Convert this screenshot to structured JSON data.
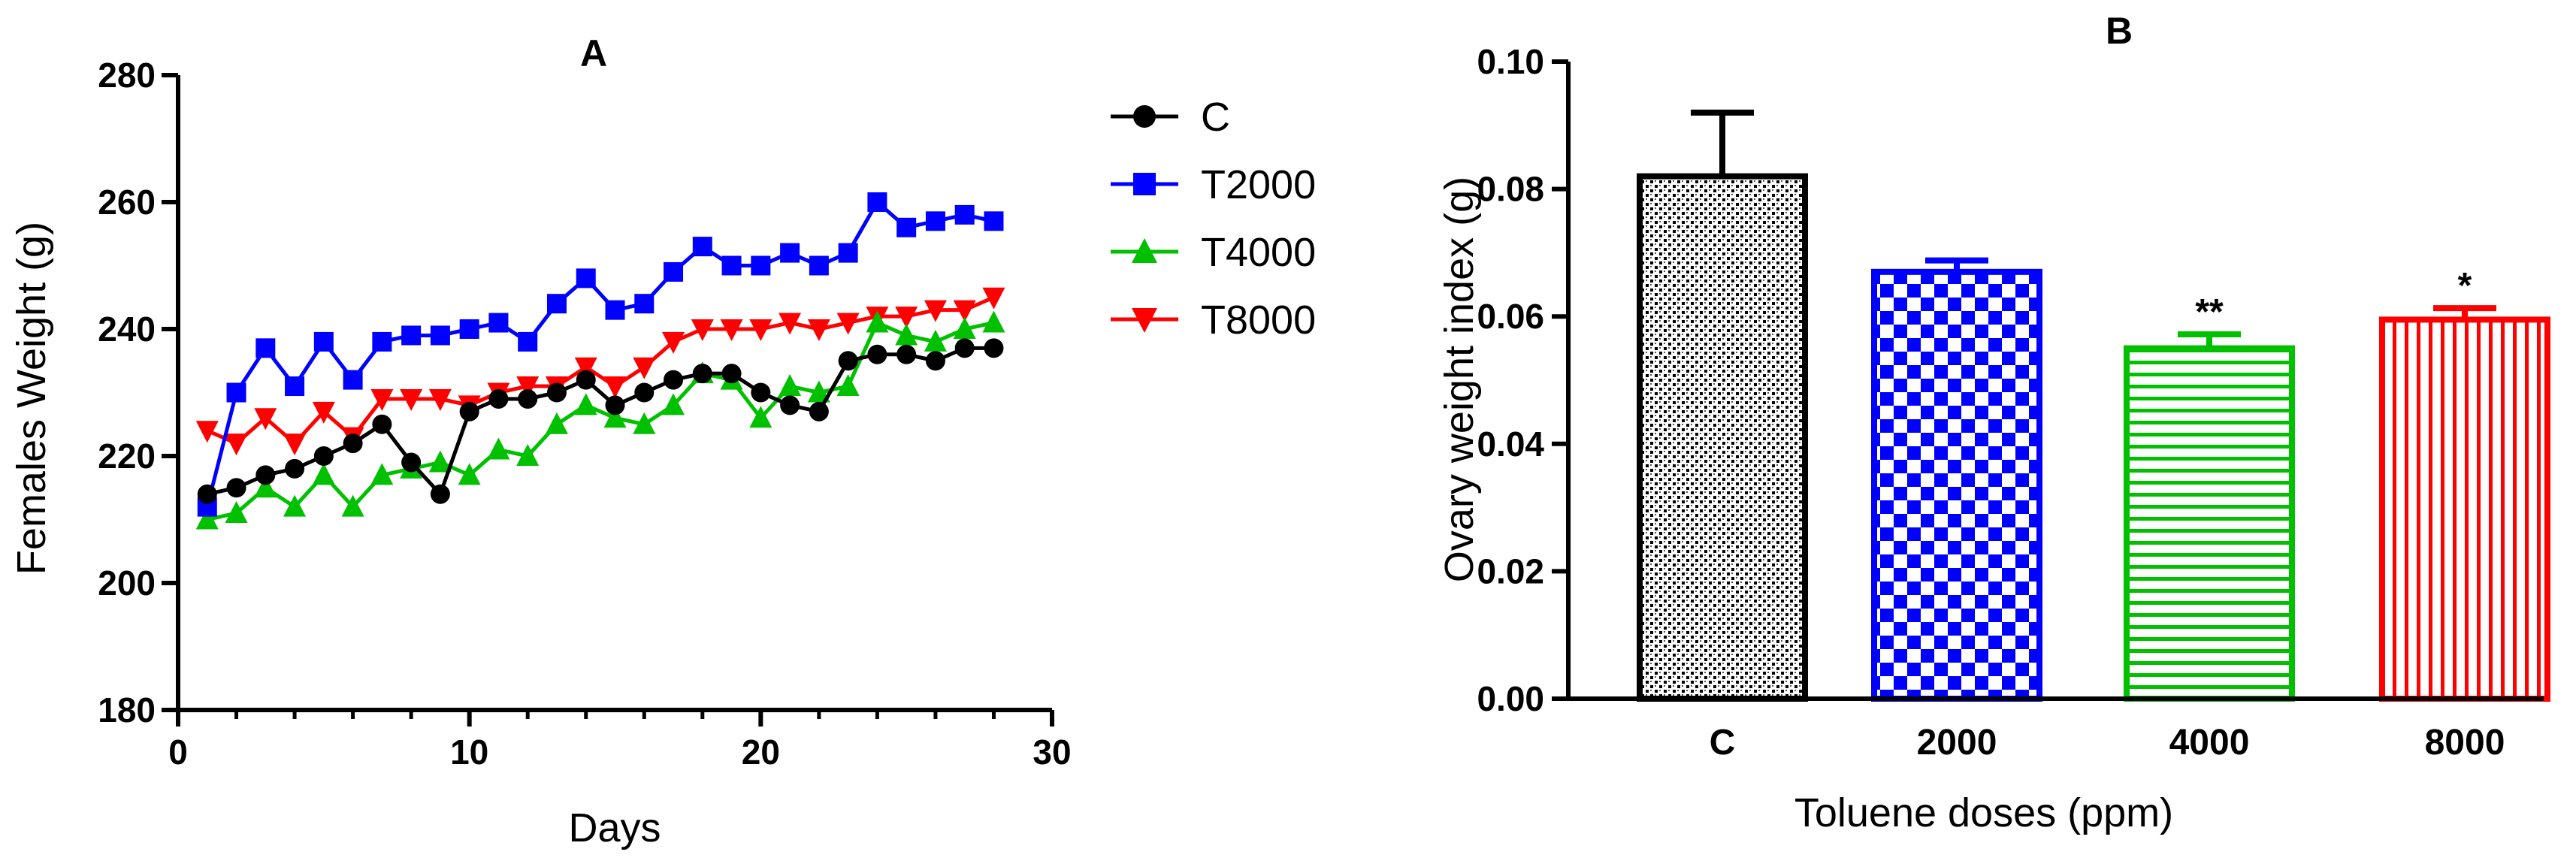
{
  "chart_data": [
    {
      "panel": "A",
      "type": "line",
      "title": "A",
      "xlabel": "Days",
      "ylabel": "Females Weight (g)",
      "xlim": [
        0,
        30
      ],
      "ylim": [
        180,
        280
      ],
      "xticks": [
        0,
        10,
        20,
        30
      ],
      "yticks": [
        180,
        200,
        220,
        240,
        260,
        280
      ],
      "grid": false,
      "legend": "right",
      "x": [
        1,
        2,
        3,
        4,
        5,
        6,
        7,
        8,
        9,
        10,
        11,
        12,
        13,
        14,
        15,
        16,
        17,
        18,
        19,
        20,
        21,
        22,
        23,
        24,
        25,
        26,
        27,
        28
      ],
      "series": [
        {
          "name": "C",
          "color": "#000000",
          "marker": "circle",
          "values": [
            214,
            215,
            217,
            218,
            220,
            222,
            225,
            219,
            214,
            227,
            229,
            229,
            230,
            232,
            228,
            230,
            232,
            233,
            233,
            230,
            228,
            227,
            235,
            236,
            236,
            235,
            237,
            237
          ]
        },
        {
          "name": "T2000",
          "color": "#0000ff",
          "marker": "square",
          "values": [
            212,
            230,
            237,
            231,
            238,
            232,
            238,
            239,
            239,
            240,
            241,
            238,
            244,
            248,
            243,
            244,
            249,
            253,
            250,
            250,
            252,
            250,
            252,
            260,
            256,
            257,
            258,
            257
          ]
        },
        {
          "name": "T4000",
          "color": "#00c000",
          "marker": "triangle-up",
          "values": [
            210,
            211,
            215,
            212,
            217,
            212,
            217,
            218,
            219,
            217,
            221,
            220,
            225,
            228,
            226,
            225,
            228,
            233,
            232,
            226,
            231,
            230,
            231,
            241,
            239,
            238,
            240,
            241
          ]
        },
        {
          "name": "T8000",
          "color": "#ff0000",
          "marker": "triangle-down",
          "values": [
            224,
            222,
            226,
            222,
            227,
            223,
            229,
            229,
            229,
            228,
            230,
            231,
            231,
            234,
            231,
            234,
            238,
            240,
            240,
            240,
            241,
            240,
            241,
            242,
            242,
            243,
            243,
            245
          ]
        }
      ]
    },
    {
      "panel": "B",
      "type": "bar",
      "title": "B",
      "xlabel": "Toluene doses (ppm)",
      "ylabel": "Ovary weight index (g)",
      "ylim": [
        0,
        0.1
      ],
      "yticks": [
        "0.00",
        "0.02",
        "0.04",
        "0.06",
        "0.08",
        "0.10"
      ],
      "ytick_values": [
        0,
        0.02,
        0.04,
        0.06,
        0.08,
        0.1
      ],
      "grid": false,
      "categories": [
        "C",
        "2000",
        "4000",
        "8000"
      ],
      "values": [
        0.082,
        0.067,
        0.055,
        0.0595
      ],
      "error": [
        0.01,
        0.0018,
        0.0022,
        0.0018
      ],
      "significance": [
        "",
        "",
        "**",
        "*"
      ],
      "colors": [
        "#000000",
        "#0000ff",
        "#00c000",
        "#ff0000"
      ],
      "patterns": [
        "dots",
        "checker",
        "horizontal",
        "vertical"
      ]
    }
  ]
}
